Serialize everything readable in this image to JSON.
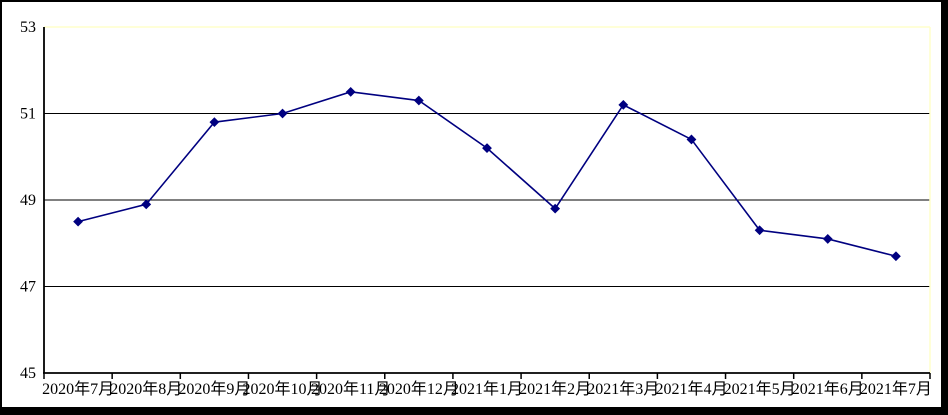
{
  "chart_data": {
    "type": "line",
    "title": "",
    "categories": [
      "2020年7月",
      "2020年8月",
      "2020年9月",
      "2020年10月",
      "2020年11月",
      "2020年12月",
      "2021年1月",
      "2021年2月",
      "2021年3月",
      "2021年4月",
      "2021年5月",
      "2021年6月",
      "2021年7月"
    ],
    "series": [
      {
        "name": "",
        "values": [
          48.5,
          48.9,
          50.8,
          51.0,
          51.5,
          51.3,
          50.2,
          48.8,
          51.2,
          50.4,
          48.3,
          48.1,
          47.7
        ]
      }
    ],
    "y_ticks": [
      53,
      51,
      49,
      47,
      45
    ],
    "ylim": [
      45,
      53
    ],
    "xlabel": "",
    "ylabel": "",
    "grid": "horizontal-major",
    "legend_position": "none",
    "marker_shape": "diamond",
    "colors": {
      "series_line": "#000080",
      "marker": "#000080",
      "gridline": "#000000",
      "axis": "#000000",
      "plot_border_top_right": "#ffffcc",
      "outer_border": "#000000",
      "background": "#ffffff"
    }
  }
}
